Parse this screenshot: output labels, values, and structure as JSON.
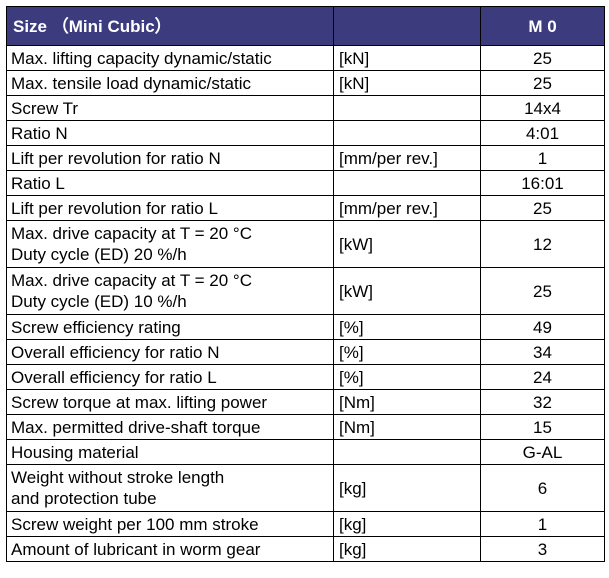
{
  "header": {
    "size_label": "Size （Mini Cubic）",
    "model": "M 0"
  },
  "colors": {
    "header_bg": "#3b3b7e",
    "header_text": "#ffffff",
    "border": "#000000"
  },
  "rows": [
    {
      "label": [
        "Max. lifting capacity dynamic/static"
      ],
      "unit": "[kN]",
      "value": "25"
    },
    {
      "label": [
        "Max. tensile load dynamic/static"
      ],
      "unit": "[kN]",
      "value": "25"
    },
    {
      "label": [
        "Screw Tr"
      ],
      "unit": "",
      "value": "14x4"
    },
    {
      "label": [
        "Ratio N"
      ],
      "unit": "",
      "value": "4:01"
    },
    {
      "label": [
        "Lift per revolution for ratio N"
      ],
      "unit": "[mm/per rev.]",
      "value": "1"
    },
    {
      "label": [
        "Ratio L"
      ],
      "unit": "",
      "value": "16:01"
    },
    {
      "label": [
        "Lift per revolution for ratio L"
      ],
      "unit": "[mm/per rev.]",
      "value": "25"
    },
    {
      "label": [
        "Max. drive capacity at T = 20 °C",
        "Duty cycle (ED) 20 %/h"
      ],
      "unit": "[kW]",
      "value": "12"
    },
    {
      "label": [
        "Max. drive capacity at T = 20 °C",
        "Duty cycle (ED) 10 %/h"
      ],
      "unit": "[kW]",
      "value": "25"
    },
    {
      "label": [
        "Screw efficiency rating"
      ],
      "unit": "[%]",
      "value": "49"
    },
    {
      "label": [
        "Overall efficiency for ratio N"
      ],
      "unit": "[%]",
      "value": "34"
    },
    {
      "label": [
        "Overall efficiency for ratio L"
      ],
      "unit": "[%]",
      "value": "24"
    },
    {
      "label": [
        "Screw torque at max. lifting power"
      ],
      "unit": "[Nm]",
      "value": "32"
    },
    {
      "label": [
        "Max. permitted drive-shaft torque"
      ],
      "unit": "[Nm]",
      "value": "15"
    },
    {
      "label": [
        "Housing material"
      ],
      "unit": "",
      "value": "G-AL"
    },
    {
      "label": [
        "Weight without stroke length",
        "and protection tube"
      ],
      "unit": "[kg]",
      "value": "6"
    },
    {
      "label": [
        "Screw weight per 100 mm stroke"
      ],
      "unit": "[kg]",
      "value": "1"
    },
    {
      "label": [
        "Amount of lubricant in worm gear"
      ],
      "unit": "[kg]",
      "value": "3"
    }
  ]
}
